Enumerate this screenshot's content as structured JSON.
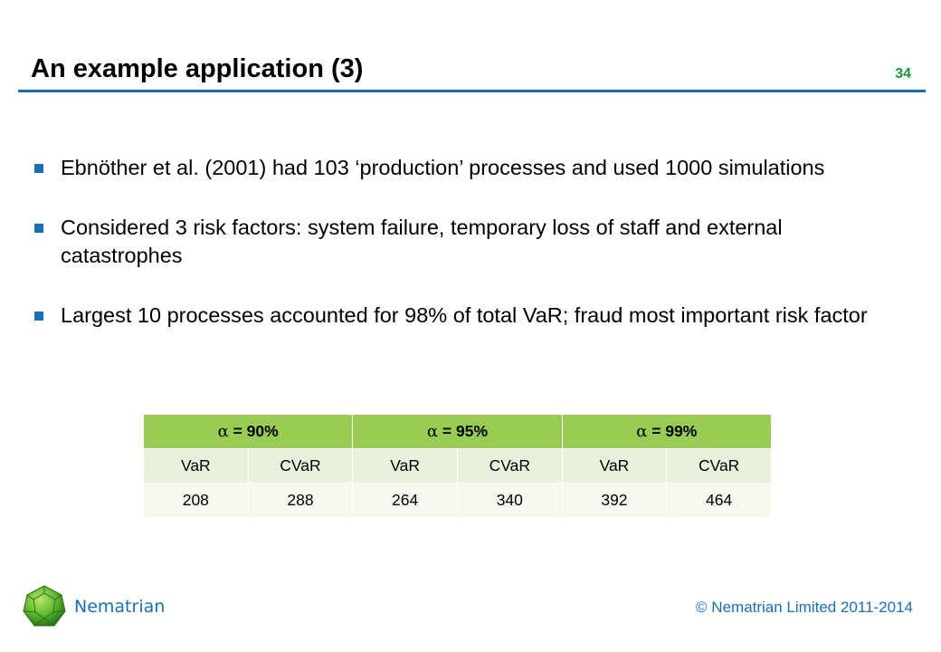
{
  "slide": {
    "title": "An example application (3)",
    "number": "34"
  },
  "bullets": [
    "Ebnöther et al. (2001) had 103 ‘production’ processes and used 1000 simulations",
    "Considered 3 risk factors: system failure, temporary loss of staff and external catastrophes",
    "Largest 10 processes accounted for 98% of total VaR; fraud most important risk factor"
  ],
  "table": {
    "alpha_symbol": "α",
    "groups": [
      " = 90%",
      " = 95%",
      " = 99%"
    ],
    "subheaders": [
      "VaR",
      "CVaR",
      "VaR",
      "CVaR",
      "VaR",
      "CVaR"
    ],
    "values": [
      "208",
      "288",
      "264",
      "340",
      "392",
      "464"
    ]
  },
  "footer": {
    "brand": "Nematrian",
    "copyright": "© Nematrian Limited 2011-2014"
  },
  "colors": {
    "accent_blue": "#1a6fb5",
    "slide_number_green": "#179c3c",
    "table_header_green": "#99cc55",
    "table_subheader": "#e9f1dd",
    "table_row": "#f4f8ee"
  },
  "icons": {
    "logo": "green-polyhedron-logo-icon",
    "bullet": "blue-square-bullet-icon"
  }
}
